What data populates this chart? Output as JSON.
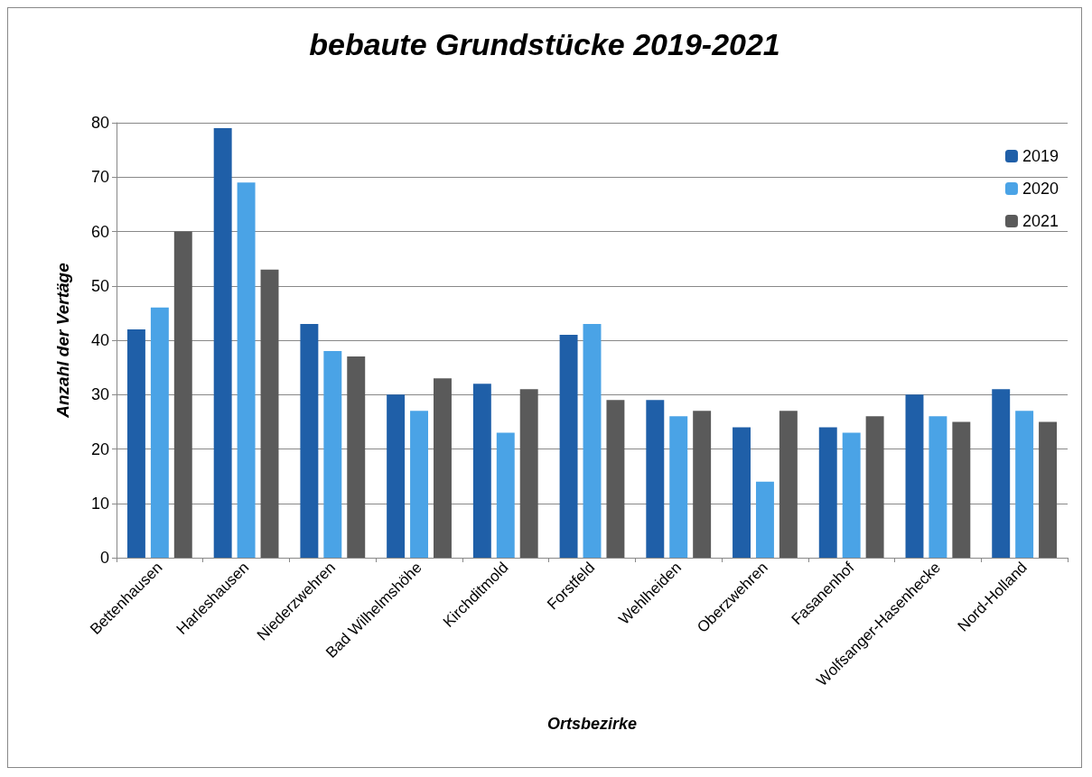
{
  "chart_data": {
    "type": "bar",
    "title": "bebaute Grundstücke 2019-2021",
    "xlabel": "Ortsbezirke",
    "ylabel": "Anzahl der Vertäge",
    "categories": [
      "Bettenhausen",
      "Harleshausen",
      "Niederzwehren",
      "Bad Wilhelmshöhe",
      "Kirchditmold",
      "Forstfeld",
      "Wehlheiden",
      "Oberzwehren",
      "Fasanenhof",
      "Wolfsanger-Hasenhecke",
      "Nord-Holland"
    ],
    "series": [
      {
        "name": "2019",
        "color": "#1f5fa8",
        "values": [
          42,
          79,
          43,
          30,
          32,
          41,
          29,
          24,
          24,
          30,
          31
        ]
      },
      {
        "name": "2020",
        "color": "#4aa3e6",
        "values": [
          46,
          69,
          38,
          27,
          23,
          43,
          26,
          14,
          23,
          26,
          27
        ]
      },
      {
        "name": "2021",
        "color": "#5a5a5a",
        "values": [
          60,
          53,
          37,
          33,
          31,
          29,
          27,
          27,
          26,
          25,
          25
        ]
      }
    ],
    "ylim": [
      0,
      80
    ],
    "yticks": [
      0,
      10,
      20,
      30,
      40,
      50,
      60,
      70,
      80
    ],
    "grid": "y",
    "legend": "top right"
  }
}
